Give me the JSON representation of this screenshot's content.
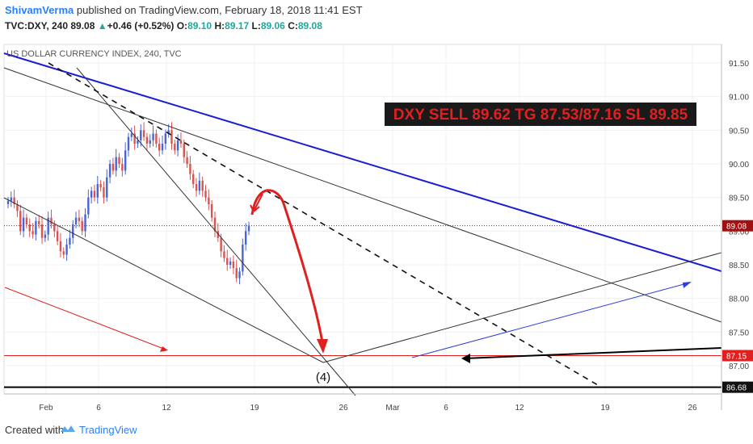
{
  "header": {
    "author": "ShivamVerma",
    "published": "published on TradingView.com, February 18, 2018 11:41 EST",
    "symbol": "TVC:DXY, 240",
    "last": "89.08",
    "change": "+0.46 (+0.52%)",
    "open_label": "O:",
    "open": "89.10",
    "high_label": "H:",
    "high": "89.17",
    "low_label": "L:",
    "low": "89.06",
    "close_label": "C:",
    "close": "89.08"
  },
  "footer": {
    "created_with": "Created with",
    "brand": "TradingView"
  },
  "colors": {
    "up": "#26a69a",
    "down": "#ef5350",
    "blue_line": "#1c1cd0",
    "red": "#e02020",
    "price_badge": "#a01010"
  },
  "chart_data": {
    "type": "candlestick",
    "title": "US DOLLAR CURRENCY INDEX, 240, TVC",
    "annotation": "DXY SELL 89.62 TG 87.53/87.16 SL 89.85",
    "wave_label": "(4)",
    "ylim": [
      86.6,
      91.7
    ],
    "y_ticks": [
      "91.50",
      "91.00",
      "90.50",
      "90.00",
      "89.50",
      "89.00",
      "88.50",
      "88.00",
      "87.50",
      "87.00"
    ],
    "x_ticks": [
      "Feb",
      "6",
      "12",
      "19",
      "26",
      "Mar",
      "6",
      "12",
      "19",
      "26"
    ],
    "price_labels": [
      {
        "value": 89.08,
        "text": "89.08"
      },
      {
        "value": 87.15,
        "text": "87.15"
      },
      {
        "value": 86.68,
        "text": "86.68"
      }
    ],
    "horizontal_lines": [
      {
        "value": 89.08,
        "color": "#a01010",
        "style": "dotted"
      },
      {
        "value": 87.15,
        "color": "#e02020",
        "style": "solid"
      },
      {
        "value": 86.68,
        "color": "#000000",
        "style": "solid"
      }
    ],
    "candles_close": [
      89.45,
      89.5,
      89.4,
      89.3,
      89.0,
      89.2,
      89.1,
      89.0,
      88.95,
      89.15,
      89.1,
      88.9,
      88.95,
      89.2,
      89.1,
      89.0,
      88.85,
      88.7,
      88.65,
      88.8,
      88.9,
      89.1,
      89.2,
      89.15,
      89.0,
      89.25,
      89.5,
      89.6,
      89.5,
      89.7,
      89.65,
      89.5,
      89.8,
      90.0,
      89.9,
      90.1,
      90.0,
      89.9,
      90.2,
      90.4,
      90.45,
      90.3,
      90.35,
      90.5,
      90.4,
      90.3,
      90.35,
      90.45,
      90.3,
      90.2,
      90.3,
      90.45,
      90.5,
      90.3,
      90.2,
      90.35,
      90.3,
      90.1,
      90.0,
      89.85,
      89.7,
      89.6,
      89.75,
      89.6,
      89.5,
      89.4,
      89.2,
      89.0,
      88.9,
      88.7,
      88.6,
      88.5,
      88.55,
      88.45,
      88.3,
      88.4,
      88.8,
      89.0,
      89.08
    ]
  }
}
